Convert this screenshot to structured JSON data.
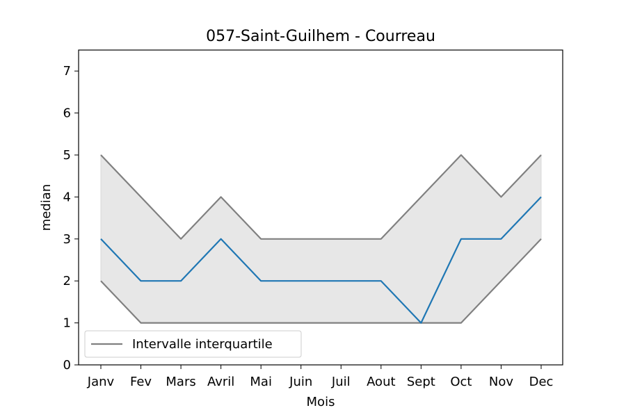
{
  "chart_data": {
    "type": "line",
    "title": "057-Saint-Guilhem - Courreau",
    "xlabel": "Mois",
    "ylabel": "median",
    "categories": [
      "Janv",
      "Fev",
      "Mars",
      "Avril",
      "Mai",
      "Juin",
      "Juil",
      "Aout",
      "Sept",
      "Oct",
      "Nov",
      "Dec"
    ],
    "ylim": [
      0,
      7.5
    ],
    "yticks": [
      0,
      1,
      2,
      3,
      4,
      5,
      6,
      7
    ],
    "grid": false,
    "legend_position": "lower-left",
    "legend_label": "Intervalle interquartile",
    "series": [
      {
        "role": "median",
        "color": "#1f77b4",
        "values": [
          3,
          2,
          2,
          3,
          2,
          2,
          2,
          2,
          1,
          3,
          3,
          4
        ]
      },
      {
        "role": "upper-quartile",
        "color": "#808080",
        "values": [
          5,
          4,
          3,
          4,
          3,
          3,
          3,
          3,
          4,
          5,
          4,
          5
        ]
      },
      {
        "role": "lower-quartile",
        "color": "#808080",
        "values": [
          2,
          1,
          1,
          1,
          1,
          1,
          1,
          1,
          1,
          1,
          2,
          3
        ]
      }
    ],
    "band_color": "#e4e4e4"
  }
}
